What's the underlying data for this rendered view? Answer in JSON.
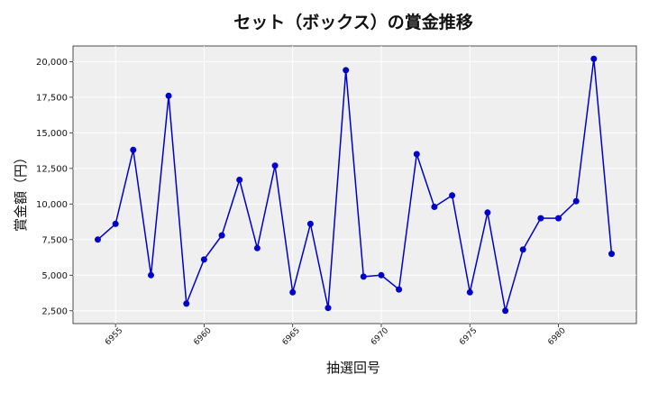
{
  "chart_data": {
    "type": "line",
    "title": "セット（ボックス）の賞金推移",
    "xlabel": "抽選回号",
    "ylabel": "賞金額（円）",
    "x": [
      6954,
      6955,
      6956,
      6957,
      6958,
      6959,
      6960,
      6961,
      6962,
      6963,
      6964,
      6965,
      6966,
      6967,
      6968,
      6969,
      6970,
      6971,
      6972,
      6973,
      6974,
      6975,
      6976,
      6977,
      6978,
      6979,
      6980,
      6981,
      6982,
      6983
    ],
    "values": [
      7500,
      8600,
      13800,
      5000,
      17600,
      3000,
      6100,
      7800,
      11700,
      6900,
      12700,
      3800,
      8600,
      2700,
      19400,
      4900,
      5000,
      4000,
      13500,
      9800,
      10600,
      3800,
      9400,
      2500,
      6800,
      9000,
      9000,
      10200,
      20200,
      6500
    ],
    "xticks": [
      6955,
      6960,
      6965,
      6970,
      6975,
      6980
    ],
    "yticks": [
      2500,
      5000,
      7500,
      10000,
      12500,
      15000,
      17500,
      20000
    ],
    "ytick_labels": [
      "2,500",
      "5,000",
      "7,500",
      "10,000",
      "12,500",
      "15,000",
      "17,500",
      "20,000"
    ],
    "xlim": [
      6952.6,
      6984.4
    ],
    "ylim": [
      1600,
      21100
    ],
    "grid": true,
    "colors": {
      "line": "#0000cc",
      "marker": "#0000cc",
      "plot_bg": "#efefef",
      "grid": "#ffffff"
    }
  }
}
